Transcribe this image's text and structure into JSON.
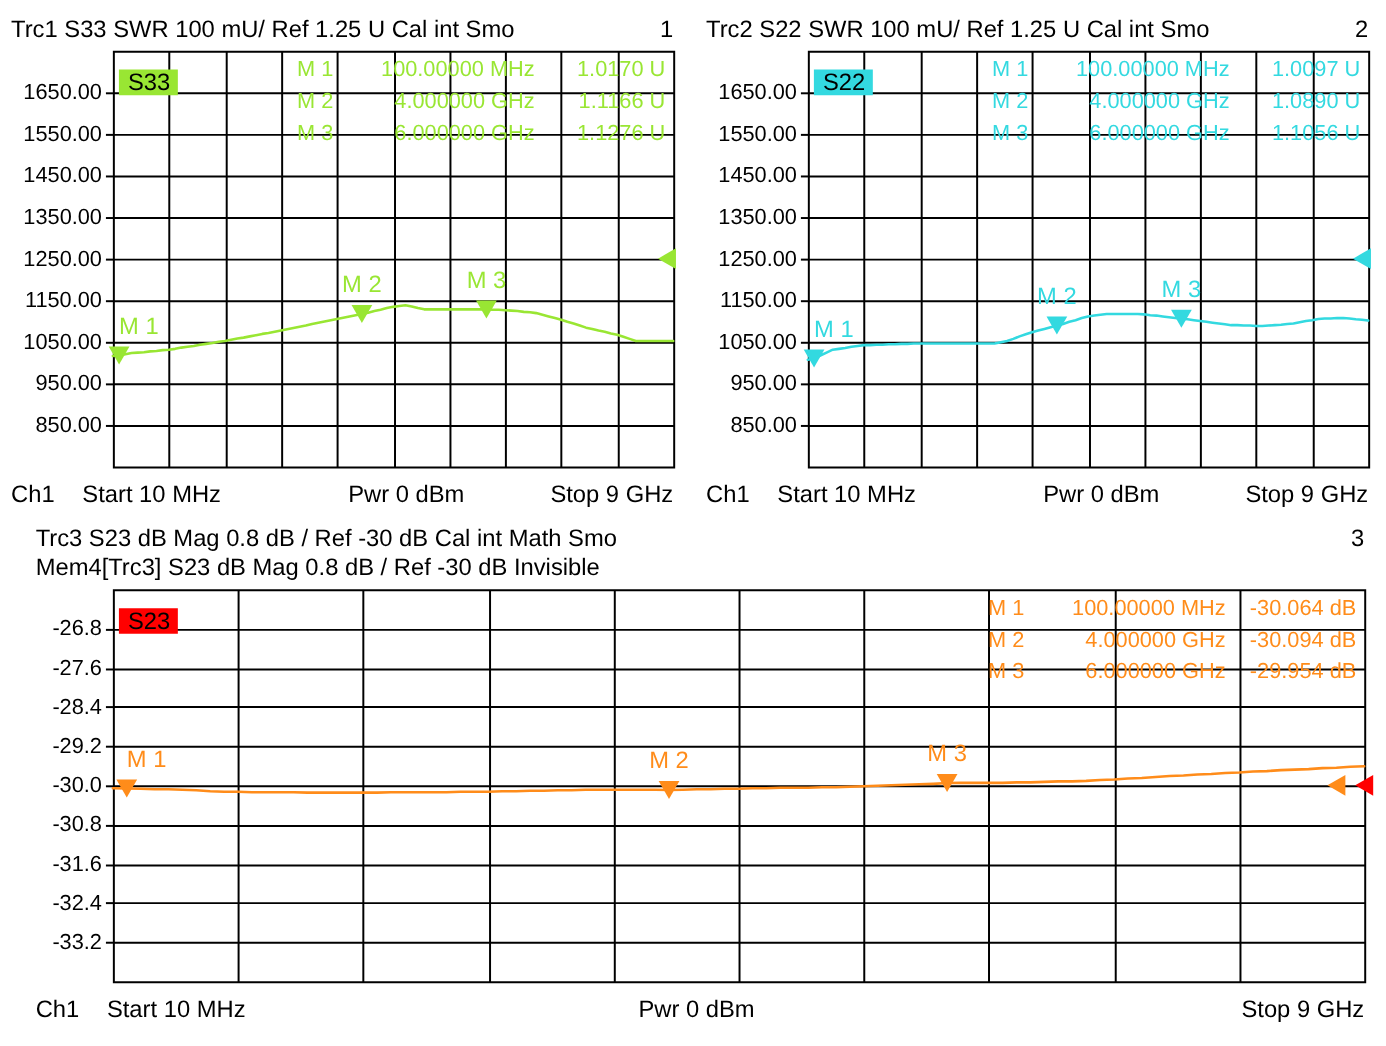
{
  "chart_data": [
    {
      "type": "line",
      "title": "Trc1 S33 SWR 100 mU/ Ref 1.25 U Cal int Smo",
      "categories": [
        null,
        null,
        null,
        null,
        null,
        null,
        null,
        null,
        null,
        null,
        null,
        null,
        null,
        null,
        null,
        null,
        null,
        null,
        null,
        null,
        null,
        null,
        null,
        null,
        null,
        null,
        null,
        null,
        null,
        null,
        null,
        null,
        null,
        null,
        null,
        null,
        null,
        null,
        null,
        null,
        null,
        null,
        null,
        null,
        null,
        null,
        null,
        null,
        null,
        null,
        null,
        null,
        null,
        null,
        null,
        null,
        null,
        null,
        null,
        null,
        null,
        null,
        null,
        null,
        null,
        null,
        null,
        null,
        null,
        null,
        null,
        null,
        null,
        null,
        null,
        null,
        null,
        null,
        null,
        null,
        null,
        null,
        null,
        null,
        null,
        null,
        null,
        null,
        null,
        null,
        null
      ],
      "series": [
        {
          "name": "S33",
          "color": "#99e633",
          "values": [
            1016,
            1017.0,
            1020,
            1023,
            1024,
            1025,
            1027,
            1028,
            1030,
            1031,
            1033,
            1036,
            1038,
            1040,
            1043,
            1045,
            1047,
            1050,
            1052,
            1055,
            1058,
            1060,
            1063,
            1066,
            1069,
            1071,
            1074,
            1077,
            1080,
            1083,
            1086,
            1089,
            1093,
            1096,
            1099,
            1102,
            1105,
            1108,
            1111,
            1114,
            1116.6,
            1120,
            1124,
            1127,
            1131,
            1134,
            1136,
            1138,
            1135,
            1131,
            1128,
            1128,
            1128,
            1128,
            1128,
            1128,
            1128,
            1128,
            1128,
            1128,
            1127.6,
            1127,
            1127,
            1126,
            1125,
            1124,
            1122,
            1121,
            1119,
            1115,
            1111,
            1107,
            1103,
            1098,
            1094,
            1089,
            1084,
            1081,
            1077,
            1074,
            1070,
            1067,
            1062,
            1057,
            1052,
            1052,
            1052,
            1052,
            1052,
            1052,
            1052
          ]
        },
        {
          "type": "scatter",
          "marker": "triangle",
          "color": "#99e633",
          "values": [
            null,
            1017.0,
            null,
            null,
            null,
            null,
            null,
            null,
            null,
            null,
            null,
            null,
            null,
            null,
            null,
            null,
            null,
            null,
            null,
            null,
            null,
            null,
            null,
            null,
            null,
            null,
            null,
            null,
            null,
            null,
            null,
            null,
            null,
            null,
            null,
            null,
            null,
            null,
            null,
            null,
            1116.6,
            null,
            null,
            null,
            null,
            null,
            null,
            null,
            null,
            null,
            null,
            null,
            null,
            null,
            null,
            null,
            null,
            null,
            null,
            null,
            1127.6,
            null,
            null,
            null,
            null,
            null,
            null,
            null,
            null,
            null,
            null,
            null,
            null,
            null,
            null,
            null,
            null,
            null,
            null,
            null,
            null,
            null,
            null,
            null,
            null,
            null,
            null,
            null,
            null,
            null,
            null
          ]
        },
        {
          "type": "scatter",
          "marker": "triangle",
          "color": "#99e633",
          "values": [
            null,
            null,
            null,
            null,
            null,
            null,
            null,
            null,
            null,
            null,
            null,
            null,
            null,
            null,
            null,
            null,
            null,
            null,
            null,
            null,
            null,
            null,
            null,
            null,
            null,
            null,
            null,
            null,
            null,
            null,
            null,
            null,
            null,
            null,
            null,
            null,
            null,
            null,
            null,
            null,
            null,
            null,
            null,
            null,
            null,
            null,
            null,
            null,
            null,
            null,
            null,
            null,
            null,
            null,
            null,
            null,
            null,
            null,
            null,
            null,
            null,
            null,
            null,
            null,
            null,
            null,
            null,
            null,
            null,
            null,
            null,
            null,
            null,
            null,
            null,
            null,
            null,
            null,
            null,
            null,
            null,
            null,
            null,
            null,
            null,
            null,
            null,
            null,
            null,
            1250,
            null
          ]
        }
      ],
      "ylim": [
        750,
        1750
      ],
      "yticks": [
        {
          "value": 850,
          "label": "850.00"
        },
        {
          "value": 950,
          "label": "950.00"
        },
        {
          "value": 1050,
          "label": "1050.00"
        },
        {
          "value": 1150,
          "label": "1150.00"
        },
        {
          "value": 1250,
          "label": "1250.00"
        },
        {
          "value": 1350,
          "label": "1350.00"
        },
        {
          "value": 1450,
          "label": "1450.00"
        },
        {
          "value": 1550,
          "label": "1550.00"
        },
        {
          "value": 1650,
          "label": "1650.00"
        }
      ],
      "grid": true,
      "legend": "top left",
      "tick_labels": "y",
      "annotations": [
        "1",
        "M 1",
        "100.00000 MHz",
        "1.0170 U",
        "M 2",
        "4.000000 GHz",
        "1.1166 U",
        "M 3",
        "6.000000 GHz",
        "1.1276 U",
        "Ch1",
        "Start 10 MHz",
        "Pwr 0 dBm",
        "Stop 9 GHz",
        {
          "text": "M 1",
          "y": 1017.0
        },
        {
          "text": "M 2",
          "y": 1116.6
        },
        {
          "text": "M 3",
          "y": 1127.6
        }
      ]
    },
    {
      "type": "line",
      "title": "Trc2 S22 SWR 100 mU/ Ref 1.25 U Cal int Smo",
      "categories": [
        null,
        null,
        null,
        null,
        null,
        null,
        null,
        null,
        null,
        null,
        null,
        null,
        null,
        null,
        null,
        null,
        null,
        null,
        null,
        null,
        null,
        null,
        null,
        null,
        null,
        null,
        null,
        null,
        null,
        null,
        null,
        null,
        null,
        null,
        null,
        null,
        null,
        null,
        null,
        null,
        null,
        null,
        null,
        null,
        null,
        null,
        null,
        null,
        null,
        null,
        null,
        null,
        null,
        null,
        null,
        null,
        null,
        null,
        null,
        null,
        null,
        null,
        null,
        null,
        null,
        null,
        null,
        null,
        null,
        null,
        null,
        null,
        null,
        null,
        null,
        null,
        null,
        null,
        null,
        null,
        null,
        null,
        null,
        null,
        null,
        null,
        null,
        null,
        null,
        null,
        null
      ],
      "series": [
        {
          "name": "S22",
          "color": "#33d9e0",
          "values": [
            1007,
            1009.7,
            1017,
            1024,
            1031,
            1033,
            1035,
            1038,
            1040,
            1042,
            1042,
            1043,
            1043,
            1044,
            1044,
            1045,
            1045,
            1046,
            1046,
            1046,
            1046,
            1046,
            1046,
            1046,
            1046,
            1046,
            1046,
            1046,
            1046,
            1046,
            1046,
            1049,
            1052,
            1057,
            1063,
            1068,
            1073,
            1077,
            1081,
            1085,
            1089.0,
            1093,
            1098,
            1102,
            1107,
            1111,
            1113,
            1115,
            1117,
            1117,
            1117,
            1117,
            1117,
            1117,
            1116,
            1114,
            1113,
            1111,
            1109,
            1107,
            1105.6,
            1104,
            1102,
            1100,
            1098,
            1096,
            1094,
            1092,
            1090,
            1090,
            1089,
            1089,
            1088,
            1088,
            1089,
            1090,
            1091,
            1093,
            1094,
            1097,
            1100,
            1102,
            1105,
            1106,
            1106,
            1107,
            1107,
            1106,
            1104,
            1103,
            1101
          ]
        },
        {
          "type": "scatter",
          "marker": "triangle",
          "color": "#33d9e0",
          "values": [
            null,
            1009.7,
            null,
            null,
            null,
            null,
            null,
            null,
            null,
            null,
            null,
            null,
            null,
            null,
            null,
            null,
            null,
            null,
            null,
            null,
            null,
            null,
            null,
            null,
            null,
            null,
            null,
            null,
            null,
            null,
            null,
            null,
            null,
            null,
            null,
            null,
            null,
            null,
            null,
            null,
            1089.0,
            null,
            null,
            null,
            null,
            null,
            null,
            null,
            null,
            null,
            null,
            null,
            null,
            null,
            null,
            null,
            null,
            null,
            null,
            null,
            1105.6,
            null,
            null,
            null,
            null,
            null,
            null,
            null,
            null,
            null,
            null,
            null,
            null,
            null,
            null,
            null,
            null,
            null,
            null,
            null,
            null,
            null,
            null,
            null,
            null,
            null,
            null,
            null,
            null,
            null,
            null
          ]
        },
        {
          "type": "scatter",
          "marker": "triangle",
          "color": "#33d9e0",
          "values": [
            null,
            null,
            null,
            null,
            null,
            null,
            null,
            null,
            null,
            null,
            null,
            null,
            null,
            null,
            null,
            null,
            null,
            null,
            null,
            null,
            null,
            null,
            null,
            null,
            null,
            null,
            null,
            null,
            null,
            null,
            null,
            null,
            null,
            null,
            null,
            null,
            null,
            null,
            null,
            null,
            null,
            null,
            null,
            null,
            null,
            null,
            null,
            null,
            null,
            null,
            null,
            null,
            null,
            null,
            null,
            null,
            null,
            null,
            null,
            null,
            null,
            null,
            null,
            null,
            null,
            null,
            null,
            null,
            null,
            null,
            null,
            null,
            null,
            null,
            null,
            null,
            null,
            null,
            null,
            null,
            null,
            null,
            null,
            null,
            null,
            null,
            null,
            null,
            null,
            1250,
            null
          ]
        }
      ],
      "ylim": [
        750,
        1750
      ],
      "yticks": [
        {
          "value": 850,
          "label": "850.00"
        },
        {
          "value": 950,
          "label": "950.00"
        },
        {
          "value": 1050,
          "label": "1050.00"
        },
        {
          "value": 1150,
          "label": "1150.00"
        },
        {
          "value": 1250,
          "label": "1250.00"
        },
        {
          "value": 1350,
          "label": "1350.00"
        },
        {
          "value": 1450,
          "label": "1450.00"
        },
        {
          "value": 1550,
          "label": "1550.00"
        },
        {
          "value": 1650,
          "label": "1650.00"
        }
      ],
      "grid": true,
      "legend": "top left",
      "tick_labels": "y",
      "annotations": [
        "2",
        "M 1",
        "100.00000 MHz",
        "1.0097 U",
        "M 2",
        "4.000000 GHz",
        "1.0890 U",
        "M 3",
        "6.000000 GHz",
        "1.1056 U",
        "Ch1",
        "Start 10 MHz",
        "Pwr 0 dBm",
        "Stop 9 GHz",
        {
          "text": "M 1",
          "y": 1009.7
        },
        {
          "text": "M 2",
          "y": 1089.0
        },
        {
          "text": "M 3",
          "y": 1105.6
        }
      ]
    },
    {
      "type": "line",
      "title": "Trc3 S23 dB Mag 0.8 dB / Ref -30 dB Cal int Math Smo",
      "subtitle": "Mem4[Trc3] S23 dB Mag 0.8 dB / Ref -30 dB Invisible",
      "categories": [
        null,
        null,
        null,
        null,
        null,
        null,
        null,
        null,
        null,
        null,
        null,
        null,
        null,
        null,
        null,
        null,
        null,
        null,
        null,
        null,
        null,
        null,
        null,
        null,
        null,
        null,
        null,
        null,
        null,
        null,
        null,
        null,
        null,
        null,
        null,
        null,
        null,
        null,
        null,
        null,
        null,
        null,
        null,
        null,
        null,
        null,
        null,
        null,
        null,
        null,
        null,
        null,
        null,
        null,
        null,
        null,
        null,
        null,
        null,
        null,
        null,
        null,
        null,
        null,
        null,
        null,
        null,
        null,
        null,
        null,
        null,
        null,
        null,
        null,
        null,
        null,
        null,
        null,
        null,
        null,
        null,
        null,
        null,
        null,
        null,
        null,
        null,
        null,
        null,
        null,
        null
      ],
      "series": [
        {
          "color": "#ff8c1a",
          "values": [
            -30.06,
            -30.064,
            -30.07,
            -30.08,
            -30.08,
            -30.09,
            -30.1,
            -30.12,
            -30.13,
            -30.13,
            -30.14,
            -30.14,
            -30.14,
            -30.14,
            -30.15,
            -30.15,
            -30.15,
            -30.15,
            -30.15,
            -30.15,
            -30.14,
            -30.14,
            -30.14,
            -30.14,
            -30.14,
            -30.13,
            -30.13,
            -30.13,
            -30.12,
            -30.12,
            -30.11,
            -30.11,
            -30.1,
            -30.1,
            -30.09,
            -30.09,
            -30.09,
            -30.09,
            -30.09,
            -30.09,
            -30.094,
            -30.09,
            -30.08,
            -30.08,
            -30.07,
            -30.07,
            -30.06,
            -30.06,
            -30.05,
            -30.05,
            -30.05,
            -30.04,
            -30.04,
            -30.03,
            -30.02,
            -30.01,
            -30.0,
            -29.99,
            -29.98,
            -29.97,
            -29.954,
            -29.95,
            -29.95,
            -29.95,
            -29.95,
            -29.94,
            -29.94,
            -29.93,
            -29.92,
            -29.92,
            -29.91,
            -29.89,
            -29.88,
            -29.86,
            -29.85,
            -29.83,
            -29.81,
            -29.8,
            -29.78,
            -29.77,
            -29.75,
            -29.74,
            -29.72,
            -29.71,
            -29.69,
            -29.68,
            -29.67,
            -29.65,
            -29.64,
            -29.62,
            -29.61
          ]
        },
        {
          "type": "scatter",
          "marker": "triangle",
          "color": "#ff8c1a",
          "values": [
            null,
            -30.064,
            null,
            null,
            null,
            null,
            null,
            null,
            null,
            null,
            null,
            null,
            null,
            null,
            null,
            null,
            null,
            null,
            null,
            null,
            null,
            null,
            null,
            null,
            null,
            null,
            null,
            null,
            null,
            null,
            null,
            null,
            null,
            null,
            null,
            null,
            null,
            null,
            null,
            null,
            -30.094,
            null,
            null,
            null,
            null,
            null,
            null,
            null,
            null,
            null,
            null,
            null,
            null,
            null,
            null,
            null,
            null,
            null,
            null,
            null,
            -29.954,
            null,
            null,
            null,
            null,
            null,
            null,
            null,
            null,
            null,
            null,
            null,
            null,
            null,
            null,
            null,
            null,
            null,
            null,
            null,
            null,
            null,
            null,
            null,
            null,
            null,
            null,
            null,
            null,
            null,
            null
          ]
        },
        {
          "type": "scatter",
          "marker": "triangle",
          "color": "#ff8c1a",
          "values": [
            null,
            null,
            null,
            null,
            null,
            null,
            null,
            null,
            null,
            null,
            null,
            null,
            null,
            null,
            null,
            null,
            null,
            null,
            null,
            null,
            null,
            null,
            null,
            null,
            null,
            null,
            null,
            null,
            null,
            null,
            null,
            null,
            null,
            null,
            null,
            null,
            null,
            null,
            null,
            null,
            null,
            null,
            null,
            null,
            null,
            null,
            null,
            null,
            null,
            null,
            null,
            null,
            null,
            null,
            null,
            null,
            null,
            null,
            null,
            null,
            null,
            null,
            null,
            null,
            null,
            null,
            null,
            null,
            null,
            null,
            null,
            null,
            null,
            null,
            null,
            null,
            null,
            null,
            null,
            null,
            null,
            null,
            null,
            null,
            null,
            null,
            null,
            null,
            -30,
            null,
            null
          ]
        },
        {
          "name": "S23",
          "type": "scatter",
          "marker": "triangle",
          "color": "#ff0000",
          "values": [
            null,
            null,
            null,
            null,
            null,
            null,
            null,
            null,
            null,
            null,
            null,
            null,
            null,
            null,
            null,
            null,
            null,
            null,
            null,
            null,
            null,
            null,
            null,
            null,
            null,
            null,
            null,
            null,
            null,
            null,
            null,
            null,
            null,
            null,
            null,
            null,
            null,
            null,
            null,
            null,
            null,
            null,
            null,
            null,
            null,
            null,
            null,
            null,
            null,
            null,
            null,
            null,
            null,
            null,
            null,
            null,
            null,
            null,
            null,
            null,
            null,
            null,
            null,
            null,
            null,
            null,
            null,
            null,
            null,
            null,
            null,
            null,
            null,
            null,
            null,
            null,
            null,
            null,
            null,
            null,
            null,
            null,
            null,
            null,
            null,
            null,
            null,
            null,
            null,
            null,
            -30
          ]
        }
      ],
      "ylim": [
        -34,
        -26
      ],
      "yticks": [
        -33.2,
        -32.4,
        -31.6,
        -30.8,
        {
          "value": -30,
          "label": "-30.0"
        },
        -29.2,
        -28.4,
        -27.6,
        -26.8
      ],
      "grid": true,
      "legend": "top left",
      "tick_labels": "y",
      "annotations": [
        "3",
        "M 1",
        "100.00000 MHz",
        "-30.064 dB",
        "M 2",
        "4.000000 GHz",
        "-30.094 dB",
        "M 3",
        "6.000000 GHz",
        "-29.954 dB",
        "Ch1",
        "Start 10 MHz",
        "Pwr 0 dBm",
        "Stop 9 GHz",
        {
          "text": "M 1",
          "y": -30.064
        },
        {
          "text": "M 2",
          "y": -30.094
        },
        {
          "text": "M 3",
          "y": -29.954
        }
      ]
    }
  ]
}
